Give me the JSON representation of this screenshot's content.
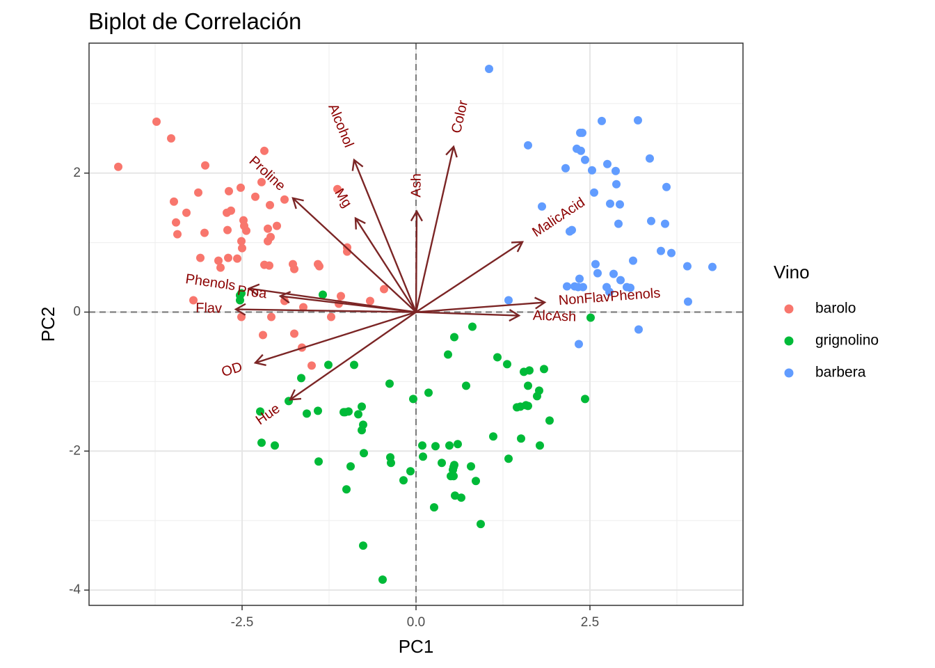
{
  "chart_data": {
    "type": "scatter",
    "title": "Biplot de Correlación",
    "xlabel": "PC1",
    "ylabel": "PC2",
    "xlim": [
      -4.7,
      4.7
    ],
    "ylim": [
      -4.22,
      3.87
    ],
    "x_ticks": [
      -2.5,
      0.0,
      2.5
    ],
    "x_tick_labels": [
      "-2.5",
      "0.0",
      "2.5"
    ],
    "y_ticks": [
      -4,
      -2,
      0,
      2
    ],
    "y_tick_labels": [
      "-4",
      "-2",
      "0",
      "2"
    ],
    "grid": true,
    "reference_lines": {
      "x": 0,
      "y": 0,
      "style": "dashed"
    },
    "legend": {
      "title": "Vino",
      "position": "right",
      "entries": [
        {
          "name": "barolo",
          "color": "#F8766D"
        },
        {
          "name": "grignolino",
          "color": "#00BA38"
        },
        {
          "name": "barbera",
          "color": "#619CFF"
        }
      ]
    },
    "arrow_color": "#7B2525",
    "label_color": "#8B0000",
    "series": [
      {
        "name": "barolo",
        "color": "#F8766D",
        "points": [
          [
            -4.28,
            2.09
          ],
          [
            -3.73,
            2.74
          ],
          [
            -3.52,
            2.5
          ],
          [
            -3.48,
            1.59
          ],
          [
            -3.45,
            1.29
          ],
          [
            -3.43,
            1.12
          ],
          [
            -3.3,
            1.43
          ],
          [
            -3.2,
            0.17
          ],
          [
            -3.13,
            1.72
          ],
          [
            -3.1,
            0.78
          ],
          [
            -3.04,
            1.14
          ],
          [
            -3.03,
            2.11
          ],
          [
            -2.84,
            0.74
          ],
          [
            -2.81,
            0.64
          ],
          [
            -2.72,
            1.43
          ],
          [
            -2.7,
            0.78
          ],
          [
            -2.69,
            1.74
          ],
          [
            -2.66,
            1.46
          ],
          [
            -2.71,
            1.18
          ],
          [
            -2.57,
            0.77
          ],
          [
            -2.52,
            1.79
          ],
          [
            -2.51,
            1.02
          ],
          [
            -2.5,
            0.92
          ],
          [
            -2.48,
            1.32
          ],
          [
            -2.47,
            1.24
          ],
          [
            -2.44,
            1.17
          ],
          [
            -2.51,
            -0.07
          ],
          [
            -2.31,
            1.66
          ],
          [
            -2.22,
            1.87
          ],
          [
            -2.18,
            2.32
          ],
          [
            -2.18,
            0.68
          ],
          [
            -2.13,
            1.2
          ],
          [
            -2.13,
            1.02
          ],
          [
            -2.11,
            0.67
          ],
          [
            -2.1,
            1.54
          ],
          [
            -2.09,
            1.08
          ],
          [
            -2.08,
            -0.07
          ],
          [
            -2.0,
            1.24
          ],
          [
            -2.2,
            -0.33
          ],
          [
            -1.89,
            1.62
          ],
          [
            -1.89,
            0.16
          ],
          [
            -1.77,
            0.69
          ],
          [
            -1.75,
            0.62
          ],
          [
            -1.75,
            -0.31
          ],
          [
            -1.64,
            -0.51
          ],
          [
            -1.62,
            0.07
          ],
          [
            -1.5,
            -0.77
          ],
          [
            -1.41,
            0.69
          ],
          [
            -1.39,
            0.66
          ],
          [
            -1.22,
            -0.07
          ],
          [
            -1.13,
            1.77
          ],
          [
            -1.11,
            0.12
          ],
          [
            -1.08,
            0.23
          ],
          [
            -0.99,
            0.93
          ],
          [
            -0.99,
            0.87
          ],
          [
            -0.66,
            0.16
          ],
          [
            -0.46,
            0.33
          ]
        ]
      },
      {
        "name": "grignolino",
        "color": "#00BA38",
        "points": [
          [
            -2.53,
            0.24
          ],
          [
            -2.51,
            0.27
          ],
          [
            -2.53,
            0.17
          ],
          [
            -1.34,
            0.25
          ],
          [
            -2.24,
            -1.43
          ],
          [
            -2.22,
            -1.88
          ],
          [
            -2.03,
            -1.92
          ],
          [
            -1.83,
            -1.28
          ],
          [
            -1.65,
            -0.95
          ],
          [
            -1.57,
            -1.46
          ],
          [
            -1.41,
            -1.42
          ],
          [
            -1.4,
            -2.15
          ],
          [
            -1.26,
            -0.76
          ],
          [
            -1.04,
            -1.44
          ],
          [
            -1.02,
            -1.44
          ],
          [
            -1.0,
            -2.55
          ],
          [
            -0.97,
            -1.43
          ],
          [
            -0.94,
            -2.22
          ],
          [
            -0.89,
            -0.76
          ],
          [
            -0.83,
            -1.47
          ],
          [
            -0.78,
            -1.36
          ],
          [
            -0.78,
            -1.7
          ],
          [
            -0.76,
            -1.62
          ],
          [
            -0.76,
            -3.36
          ],
          [
            -0.75,
            -2.03
          ],
          [
            -0.48,
            -3.85
          ],
          [
            -0.38,
            -1.03
          ],
          [
            -0.37,
            -2.09
          ],
          [
            -0.36,
            -2.17
          ],
          [
            -0.18,
            -2.42
          ],
          [
            -0.08,
            -2.29
          ],
          [
            -0.04,
            -1.25
          ],
          [
            0.09,
            -1.92
          ],
          [
            0.1,
            -2.08
          ],
          [
            0.18,
            -1.16
          ],
          [
            0.26,
            -2.81
          ],
          [
            0.28,
            -1.93
          ],
          [
            0.37,
            -2.17
          ],
          [
            0.46,
            -0.61
          ],
          [
            0.48,
            -1.92
          ],
          [
            0.5,
            -2.36
          ],
          [
            0.53,
            -2.27
          ],
          [
            0.54,
            -2.36
          ],
          [
            0.54,
            -2.23
          ],
          [
            0.55,
            -2.2
          ],
          [
            0.55,
            -0.36
          ],
          [
            0.56,
            -2.64
          ],
          [
            0.6,
            -1.9
          ],
          [
            0.65,
            -2.67
          ],
          [
            0.72,
            -1.06
          ],
          [
            0.79,
            -2.22
          ],
          [
            0.81,
            -0.21
          ],
          [
            0.86,
            -2.43
          ],
          [
            0.93,
            -3.05
          ],
          [
            1.11,
            -1.79
          ],
          [
            1.17,
            -0.65
          ],
          [
            1.33,
            -2.11
          ],
          [
            1.31,
            -0.75
          ],
          [
            1.45,
            -1.37
          ],
          [
            1.5,
            -1.36
          ],
          [
            1.51,
            -1.82
          ],
          [
            1.55,
            -0.86
          ],
          [
            1.58,
            -1.34
          ],
          [
            1.61,
            -1.35
          ],
          [
            1.61,
            -1.06
          ],
          [
            1.63,
            -0.84
          ],
          [
            1.74,
            -1.21
          ],
          [
            1.77,
            -1.13
          ],
          [
            1.78,
            -1.92
          ],
          [
            1.84,
            -0.82
          ],
          [
            1.92,
            -1.56
          ],
          [
            2.43,
            -1.25
          ],
          [
            2.51,
            -0.08
          ]
        ]
      },
      {
        "name": "barbera",
        "color": "#619CFF",
        "points": [
          [
            1.05,
            3.5
          ],
          [
            1.33,
            0.17
          ],
          [
            1.61,
            2.4
          ],
          [
            1.81,
            1.52
          ],
          [
            2.15,
            2.07
          ],
          [
            2.17,
            0.37
          ],
          [
            2.21,
            1.16
          ],
          [
            2.24,
            1.18
          ],
          [
            2.28,
            0.37
          ],
          [
            2.31,
            2.35
          ],
          [
            2.33,
            0.36
          ],
          [
            2.34,
            -0.46
          ],
          [
            2.35,
            0.48
          ],
          [
            2.36,
            2.58
          ],
          [
            2.37,
            2.32
          ],
          [
            2.39,
            2.58
          ],
          [
            2.4,
            0.36
          ],
          [
            2.43,
            2.19
          ],
          [
            2.53,
            2.04
          ],
          [
            2.56,
            1.72
          ],
          [
            2.58,
            0.69
          ],
          [
            2.61,
            0.56
          ],
          [
            2.67,
            2.75
          ],
          [
            2.74,
            0.36
          ],
          [
            2.75,
            2.13
          ],
          [
            2.78,
            0.29
          ],
          [
            2.79,
            1.56
          ],
          [
            2.84,
            0.55
          ],
          [
            2.87,
            2.03
          ],
          [
            2.88,
            1.84
          ],
          [
            2.91,
            1.27
          ],
          [
            2.93,
            1.55
          ],
          [
            2.94,
            0.46
          ],
          [
            3.03,
            0.36
          ],
          [
            3.08,
            0.35
          ],
          [
            3.12,
            0.74
          ],
          [
            3.19,
            2.76
          ],
          [
            3.2,
            -0.25
          ],
          [
            3.36,
            2.21
          ],
          [
            3.38,
            1.31
          ],
          [
            3.52,
            0.88
          ],
          [
            3.58,
            1.27
          ],
          [
            3.6,
            1.8
          ],
          [
            3.67,
            0.85
          ],
          [
            3.9,
            0.66
          ],
          [
            3.91,
            0.15
          ],
          [
            4.26,
            0.65
          ]
        ]
      }
    ],
    "loadings": [
      {
        "name": "Alcohol",
        "x": -0.89,
        "y": 2.19
      },
      {
        "name": "MalicAcid",
        "x": 1.53,
        "y": 1.01
      },
      {
        "name": "Ash",
        "x": 0.01,
        "y": 1.45
      },
      {
        "name": "AlcAsh",
        "x": 1.48,
        "y": -0.05
      },
      {
        "name": "Mg",
        "x": -0.87,
        "y": 1.35
      },
      {
        "name": "Phenols",
        "x": -2.4,
        "y": 0.34
      },
      {
        "name": "Flav",
        "x": -2.59,
        "y": 0.04
      },
      {
        "name": "NonFlavPhenols",
        "x": 1.85,
        "y": 0.14
      },
      {
        "name": "Proa",
        "x": -1.95,
        "y": 0.23
      },
      {
        "name": "Color",
        "x": 0.54,
        "y": 2.38
      },
      {
        "name": "Hue",
        "x": -1.81,
        "y": -1.26
      },
      {
        "name": "OD",
        "x": -2.31,
        "y": -0.73
      },
      {
        "name": "Proline",
        "x": -1.77,
        "y": 1.64
      }
    ]
  }
}
